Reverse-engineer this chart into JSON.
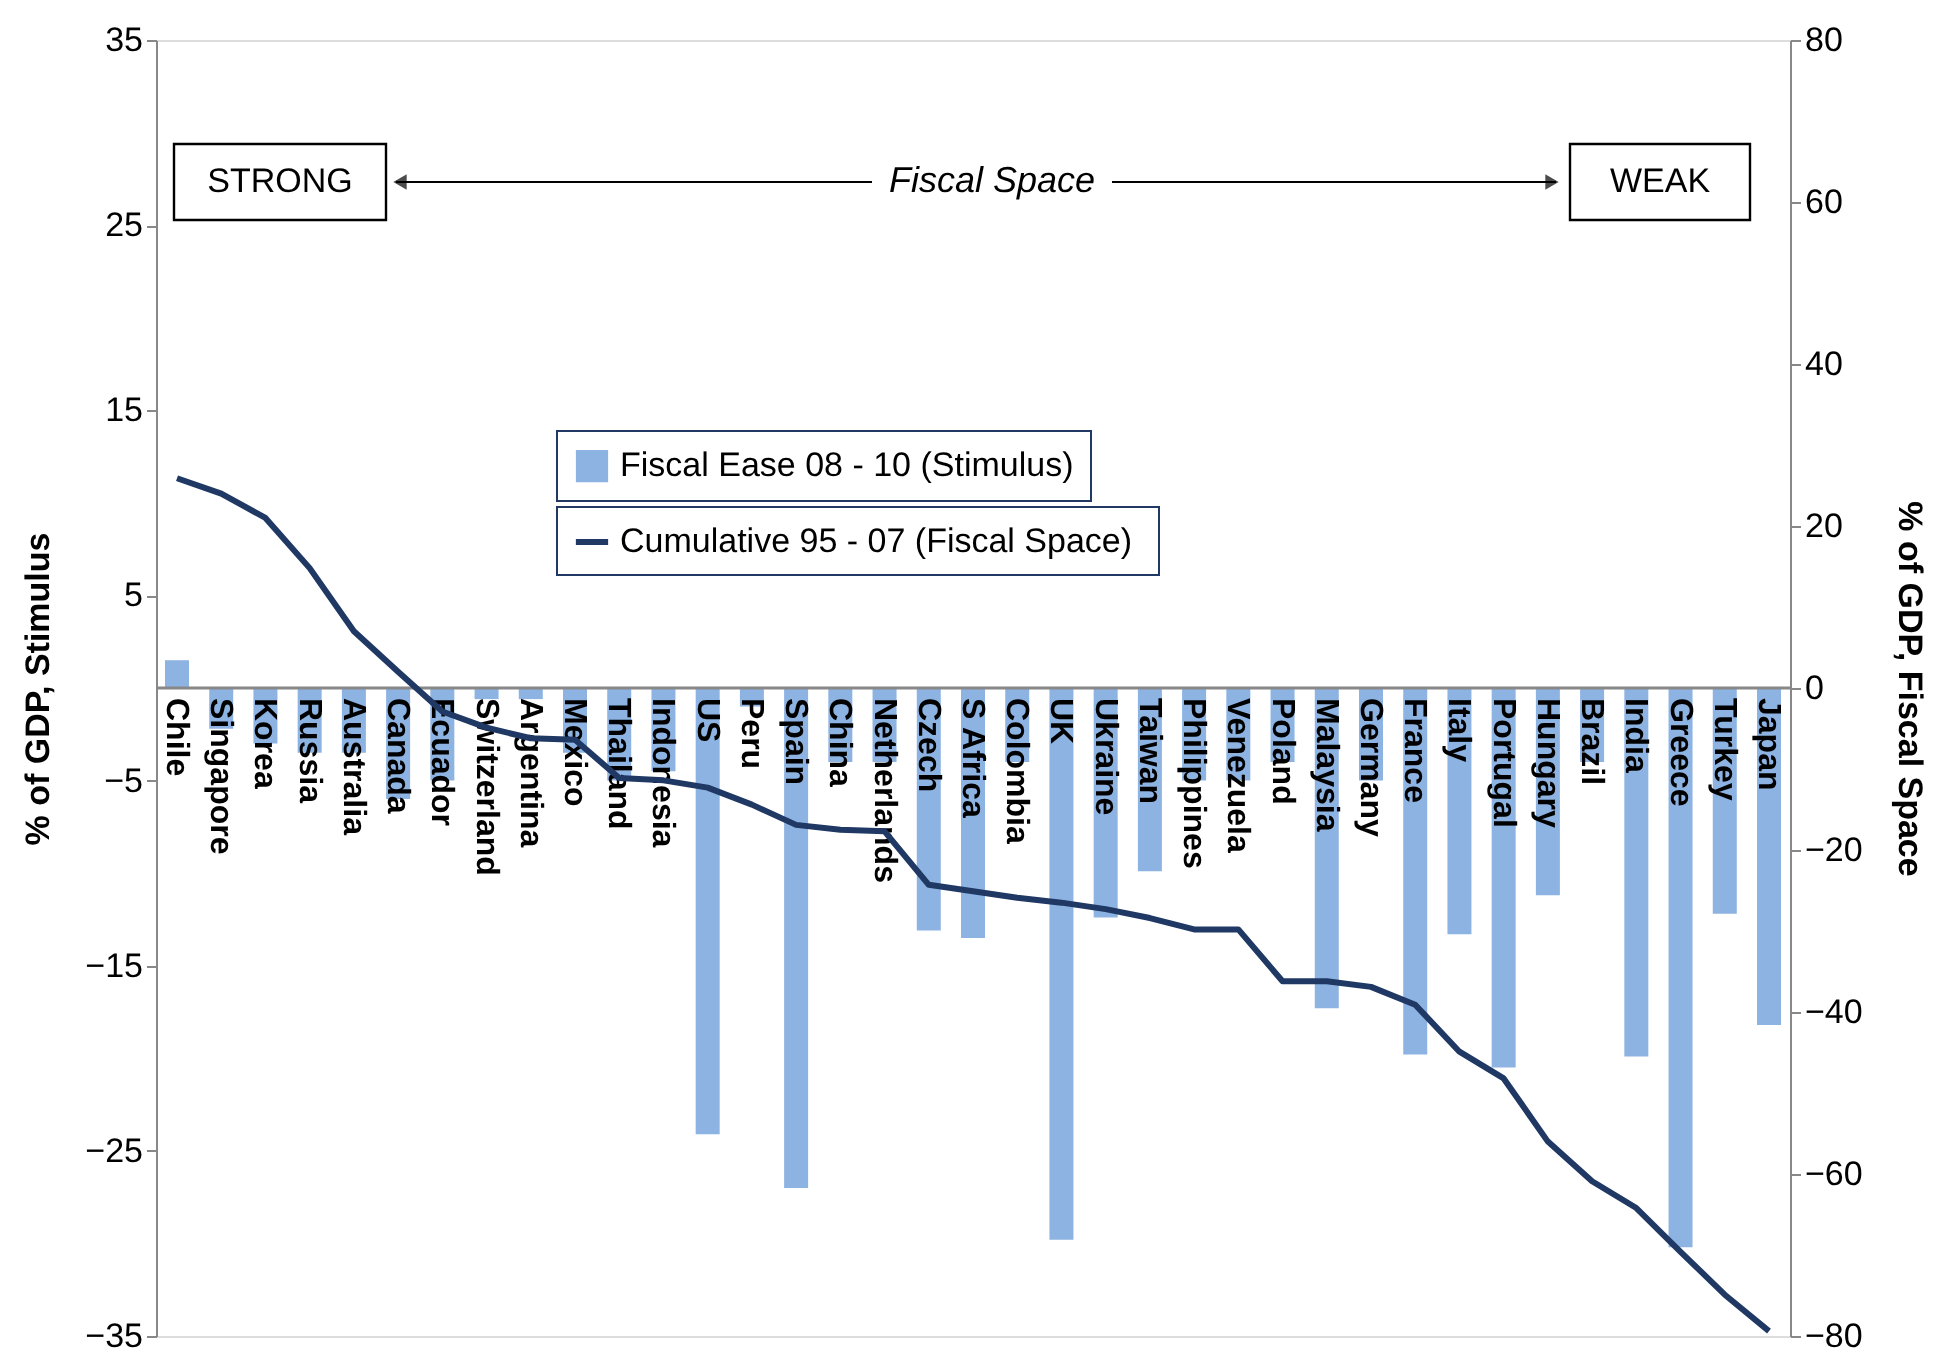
{
  "chart_data": {
    "type": "bar",
    "categories": [
      "Chile",
      "Singapore",
      "Korea",
      "Russia",
      "Australia",
      "Canada",
      "Ecuador",
      "Switzerland",
      "Argentina",
      "Mexico",
      "Thailand",
      "Indonesia",
      "US",
      "Peru",
      "Spain",
      "China",
      "Netherlands",
      "Czech",
      "S Africa",
      "Colombia",
      "UK",
      "Ukraine",
      "Taiwan",
      "Philippines",
      "Venezuela",
      "Poland",
      "Malaysia",
      "Germany",
      "France",
      "Italy",
      "Portugal",
      "Hungary",
      "Brazil",
      "India",
      "Greece",
      "Turkey",
      "Japan"
    ],
    "series": [
      {
        "name": "Fiscal Ease 08 - 10 (Stimulus)",
        "color": "#8db3e2",
        "values": [
          1.5,
          -2.2,
          -3.0,
          -3.5,
          -3.5,
          -6.0,
          -5.0,
          -0.6,
          -0.6,
          -3.5,
          -5.0,
          -4.5,
          -24.1,
          -1.0,
          -27.0,
          -4.0,
          -4.0,
          -13.1,
          -13.5,
          -4.0,
          -29.8,
          -12.4,
          -9.9,
          -5.0,
          -5.0,
          -4.0,
          -17.3,
          -5.0,
          -19.8,
          -13.3,
          -20.5,
          -11.2,
          -4.0,
          -19.9,
          -30.2,
          -12.2,
          -18.2
        ]
      },
      {
        "name": "Cumulative 95 - 07  (Fiscal Space)",
        "type": "line",
        "axis": "y2",
        "color": "#1f3864",
        "values": [
          25.9,
          24.0,
          21.0,
          14.8,
          7.0,
          2.0,
          -2.9,
          -4.9,
          -6.2,
          -6.4,
          -11.1,
          -11.4,
          -12.3,
          -14.4,
          -16.9,
          -17.5,
          -17.7,
          -24.3,
          -25.1,
          -25.9,
          -26.5,
          -27.3,
          -28.4,
          -29.8,
          -29.8,
          -36.2,
          -36.2,
          -36.9,
          -39.1,
          -44.9,
          -48.2,
          -56.0,
          -60.9,
          -64.2,
          -69.6,
          -74.9,
          -79.4
        ]
      }
    ],
    "ylabel": "% of GDP,  Stimulus",
    "y2label": "% of GDP,  Fiscal Space",
    "ylim": [
      -35,
      35
    ],
    "yticks": [
      -35,
      -25,
      -15,
      -5,
      5,
      15,
      25,
      35
    ],
    "y2lim": [
      -80,
      80
    ],
    "y2ticks": [
      -80,
      -60,
      -40,
      -20,
      0,
      20,
      40,
      60,
      80
    ],
    "annotations": [
      "STRONG",
      "Fiscal Space",
      "WEAK"
    ],
    "legend": "top"
  }
}
